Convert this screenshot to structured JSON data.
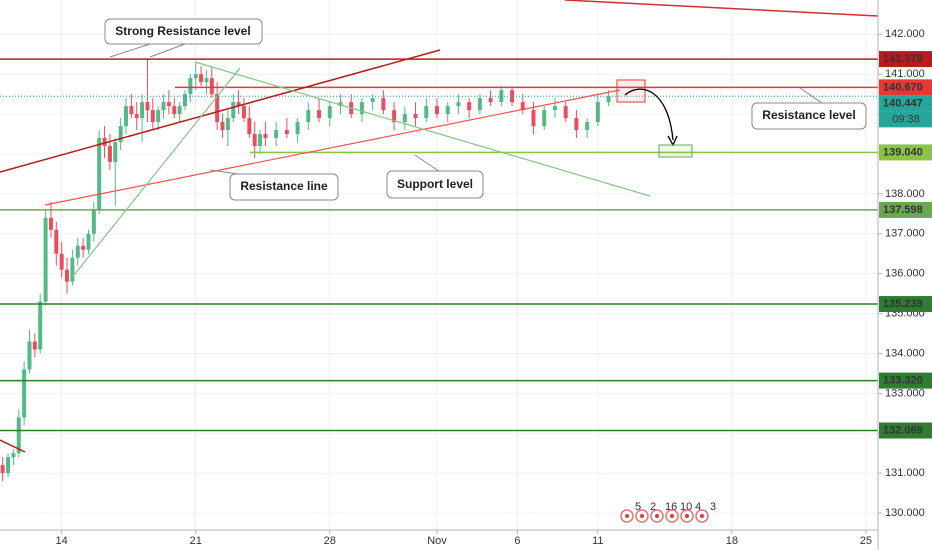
{
  "chart_data": {
    "type": "candlestick",
    "x": [
      -2.2,
      -2.0,
      -1.8,
      -1.6,
      -1.4,
      -1.2,
      -1.0,
      -0.8,
      -0.6,
      -0.4,
      -0.2,
      0.0,
      0.2,
      0.4,
      0.6,
      0.8,
      1.0,
      1.2,
      1.4,
      1.6,
      1.8,
      2.0,
      2.2,
      2.4,
      2.6,
      2.8,
      3.0,
      3.2,
      3.4,
      3.6,
      3.8,
      4.0,
      4.2,
      4.4,
      4.6,
      4.8,
      5.0,
      5.2,
      5.4,
      5.6,
      5.8,
      6.0,
      6.2,
      6.4,
      6.6,
      6.8,
      7.0,
      7.2,
      7.4,
      7.6,
      8.0,
      8.4,
      8.8,
      9.2,
      9.6,
      10.0,
      10.4,
      10.8,
      11.2,
      11.6,
      12.0,
      12.4,
      12.8,
      13.2,
      13.6,
      14.0,
      14.4,
      14.8,
      15.2,
      15.6,
      16.0,
      16.4,
      16.8,
      17.2,
      17.6,
      18.0,
      18.4,
      18.8,
      19.2,
      19.6,
      20.0,
      20.4
    ],
    "ohlc": [
      [
        131.2,
        131.4,
        130.8,
        131.0
      ],
      [
        131.0,
        131.5,
        130.9,
        131.4
      ],
      [
        131.4,
        131.6,
        131.2,
        131.5
      ],
      [
        131.5,
        132.6,
        131.4,
        132.4
      ],
      [
        132.4,
        133.8,
        132.2,
        133.6
      ],
      [
        133.6,
        134.6,
        133.5,
        134.3
      ],
      [
        134.3,
        134.5,
        133.9,
        134.1
      ],
      [
        134.1,
        135.5,
        134.0,
        135.3
      ],
      [
        135.3,
        137.6,
        135.2,
        137.4
      ],
      [
        137.4,
        137.8,
        136.9,
        137.1
      ],
      [
        137.1,
        137.3,
        136.2,
        136.5
      ],
      [
        136.5,
        136.8,
        135.9,
        136.1
      ],
      [
        136.1,
        136.4,
        135.5,
        135.8
      ],
      [
        135.8,
        136.6,
        135.7,
        136.4
      ],
      [
        136.4,
        136.9,
        136.2,
        136.7
      ],
      [
        136.7,
        136.9,
        136.4,
        136.6
      ],
      [
        136.6,
        137.1,
        136.5,
        137.0
      ],
      [
        137.0,
        137.8,
        136.8,
        137.6
      ],
      [
        137.6,
        139.6,
        137.5,
        139.4
      ],
      [
        139.4,
        139.7,
        138.9,
        139.2
      ],
      [
        139.2,
        139.5,
        138.6,
        138.8
      ],
      [
        138.8,
        139.4,
        137.7,
        139.3
      ],
      [
        139.3,
        139.9,
        139.1,
        139.7
      ],
      [
        139.7,
        140.4,
        139.5,
        140.2
      ],
      [
        140.2,
        140.5,
        139.9,
        140.0
      ],
      [
        140.0,
        140.3,
        139.6,
        139.9
      ],
      [
        139.9,
        140.5,
        139.3,
        140.3
      ],
      [
        140.3,
        141.4,
        139.8,
        140.1
      ],
      [
        140.1,
        140.4,
        139.6,
        139.8
      ],
      [
        139.8,
        140.2,
        139.6,
        140.1
      ],
      [
        140.1,
        140.5,
        139.9,
        140.3
      ],
      [
        140.3,
        140.6,
        140.0,
        140.2
      ],
      [
        140.2,
        140.4,
        139.9,
        140.0
      ],
      [
        140.0,
        140.3,
        139.8,
        140.2
      ],
      [
        140.2,
        140.6,
        140.1,
        140.5
      ],
      [
        140.5,
        141.0,
        140.3,
        140.9
      ],
      [
        140.9,
        141.3,
        140.6,
        141.0
      ],
      [
        141.0,
        141.2,
        140.7,
        140.8
      ],
      [
        140.8,
        141.1,
        140.5,
        140.9
      ],
      [
        140.9,
        141.2,
        140.4,
        140.5
      ],
      [
        140.5,
        140.8,
        139.6,
        139.8
      ],
      [
        139.8,
        140.0,
        139.4,
        139.6
      ],
      [
        139.6,
        140.1,
        139.2,
        139.9
      ],
      [
        139.9,
        140.5,
        139.8,
        140.3
      ],
      [
        140.3,
        140.6,
        140.0,
        140.2
      ],
      [
        140.2,
        140.4,
        139.8,
        139.9
      ],
      [
        139.9,
        140.2,
        139.4,
        139.5
      ],
      [
        139.5,
        139.8,
        138.9,
        139.2
      ],
      [
        139.2,
        139.6,
        139.0,
        139.5
      ],
      [
        139.5,
        139.8,
        139.2,
        139.4
      ],
      [
        139.4,
        139.8,
        139.2,
        139.6
      ],
      [
        139.6,
        139.9,
        139.4,
        139.5
      ],
      [
        139.5,
        139.9,
        139.3,
        139.8
      ],
      [
        139.8,
        140.3,
        139.6,
        140.1
      ],
      [
        140.1,
        140.4,
        139.8,
        139.9
      ],
      [
        139.9,
        140.3,
        139.7,
        140.2
      ],
      [
        140.2,
        140.5,
        140.0,
        140.3
      ],
      [
        140.3,
        140.5,
        139.9,
        140.0
      ],
      [
        140.0,
        140.4,
        139.8,
        140.3
      ],
      [
        140.3,
        140.5,
        140.1,
        140.4
      ],
      [
        140.4,
        140.6,
        140.0,
        140.1
      ],
      [
        140.1,
        140.3,
        139.6,
        139.8
      ],
      [
        139.8,
        140.2,
        139.6,
        140.0
      ],
      [
        140.0,
        140.3,
        139.7,
        139.9
      ],
      [
        139.9,
        140.4,
        139.8,
        140.2
      ],
      [
        140.2,
        140.4,
        139.9,
        140.0
      ],
      [
        140.0,
        140.3,
        139.8,
        140.2
      ],
      [
        140.2,
        140.5,
        140.0,
        140.3
      ],
      [
        140.3,
        140.4,
        139.9,
        140.1
      ],
      [
        140.1,
        140.5,
        140.0,
        140.4
      ],
      [
        140.4,
        140.6,
        140.2,
        140.3
      ],
      [
        140.3,
        140.7,
        140.2,
        140.6
      ],
      [
        140.6,
        140.7,
        140.2,
        140.3
      ],
      [
        140.3,
        140.5,
        140.0,
        140.1
      ],
      [
        140.1,
        140.3,
        139.5,
        139.7
      ],
      [
        139.7,
        140.2,
        139.6,
        140.1
      ],
      [
        140.1,
        140.4,
        139.9,
        140.2
      ],
      [
        140.2,
        140.3,
        139.8,
        139.9
      ],
      [
        139.9,
        140.1,
        139.4,
        139.6
      ],
      [
        139.6,
        139.9,
        139.4,
        139.8
      ],
      [
        139.8,
        140.5,
        139.7,
        140.3
      ],
      [
        140.3,
        140.6,
        140.2,
        140.447
      ]
    ],
    "up_color": "#53b987",
    "down_color": "#eb4d5c",
    "xlim": [
      -2.3,
      30.45
    ],
    "ylim": [
      129.45,
      142.86
    ],
    "xticks": [
      {
        "value": 0,
        "label": "14"
      },
      {
        "value": 5,
        "label": "21"
      },
      {
        "value": 10,
        "label": "28"
      },
      {
        "value": 14,
        "label": "Nov"
      },
      {
        "value": 17,
        "label": "6"
      },
      {
        "value": 20,
        "label": "11"
      },
      {
        "value": 25,
        "label": "18"
      },
      {
        "value": 30,
        "label": "25"
      }
    ],
    "yticks": [
      {
        "value": 130,
        "label": "130.000"
      },
      {
        "value": 131,
        "label": "131.000"
      },
      {
        "value": 132,
        "label": "132.000"
      },
      {
        "value": 133,
        "label": "133.000"
      },
      {
        "value": 134,
        "label": "134.000"
      },
      {
        "value": 135,
        "label": "135.000"
      },
      {
        "value": 136,
        "label": "136.000"
      },
      {
        "value": 137,
        "label": "137.000"
      },
      {
        "value": 138,
        "label": "138.000"
      },
      {
        "value": 139,
        "label": "139.000"
      },
      {
        "value": 140,
        "label": "140.000"
      },
      {
        "value": 141,
        "label": "141.000"
      },
      {
        "value": 142,
        "label": "142.000"
      }
    ],
    "grid": true,
    "levels": [
      {
        "value": 141.379,
        "color": "#b71c1c"
      },
      {
        "value": 140.67,
        "label": "140.670",
        "color": "#e53935"
      },
      {
        "value": 140.447,
        "color": "#26a69a",
        "dashed": true
      },
      {
        "value": 139.04,
        "label": "139.040",
        "color": "#8bc34a"
      },
      {
        "value": 137.598,
        "color": "#6aa84f"
      },
      {
        "value": 135.239,
        "color": "#2e7d32"
      },
      {
        "value": 133.32,
        "label": "133.320",
        "color": "#2e7d32"
      },
      {
        "value": 132.069,
        "color": "#2e7d32"
      }
    ],
    "countdown": "09:38",
    "annotations": [
      "Strong Resistance level",
      "Resistance line",
      "Support level",
      "Resistance level"
    ],
    "events": [
      "5",
      "2",
      "16",
      "10",
      "4",
      "3"
    ]
  }
}
